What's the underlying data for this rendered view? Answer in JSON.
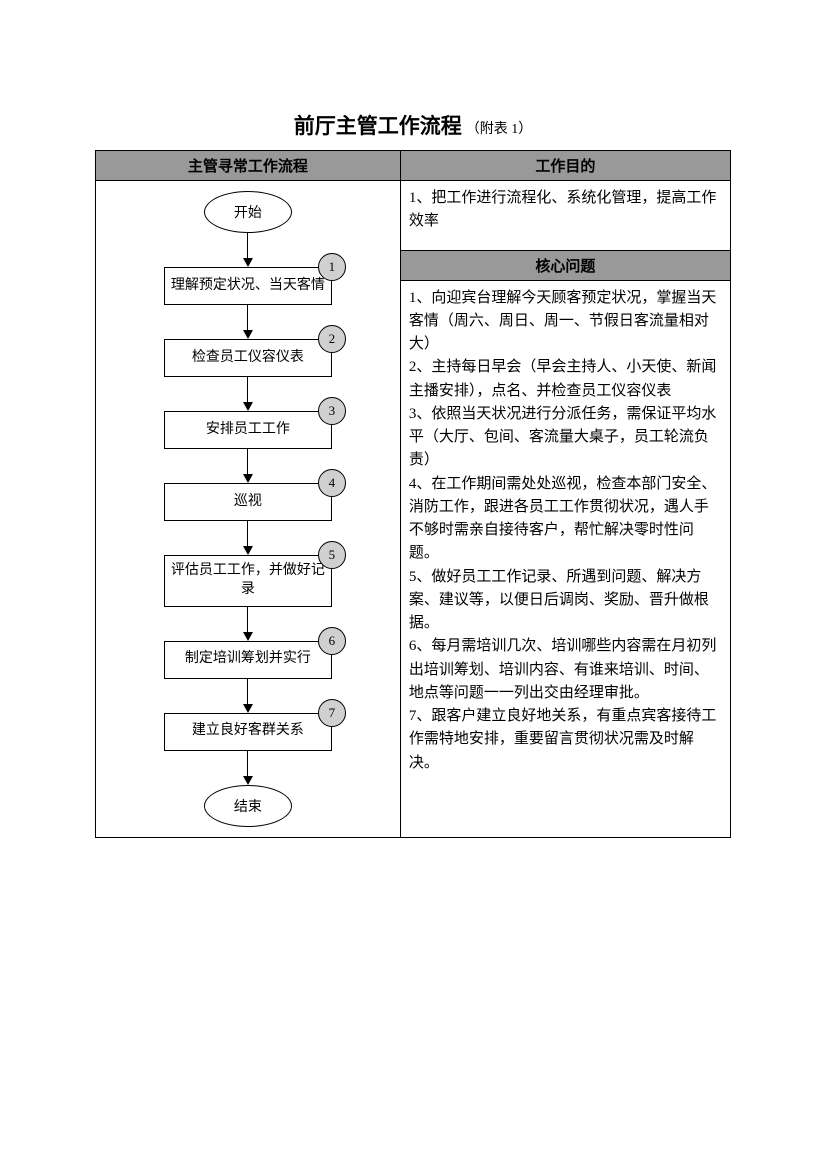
{
  "title": {
    "main": "前厅主管工作流程",
    "sub": "（附表 1）"
  },
  "headers": {
    "left": "主管寻常工作流程",
    "right": "工作目的",
    "core": "核心问题"
  },
  "flowchart": {
    "start_label": "开始",
    "end_label": "结束",
    "steps": [
      {
        "n": "1",
        "label": "理解预定状况、当天客情"
      },
      {
        "n": "2",
        "label": "检查员工仪容仪表"
      },
      {
        "n": "3",
        "label": "安排员工工作"
      },
      {
        "n": "4",
        "label": "巡视"
      },
      {
        "n": "5",
        "label": "评估员工工作，并做好记录"
      },
      {
        "n": "6",
        "label": "制定培训筹划并实行"
      },
      {
        "n": "7",
        "label": "建立良好客群关系"
      }
    ]
  },
  "objective_text": "1、把工作进行流程化、系统化管理，提高工作效率",
  "core_items": [
    "1、向迎宾台理解今天顾客预定状况，掌握当天客情（周六、周日、周一、节假日客流量相对大）",
    "2、主持每日早会（早会主持人、小天使、新闻主播安排），点名、并检查员工仪容仪表",
    "3、依照当天状况进行分派任务，需保证平均水平（大厅、包间、客流量大桌子，员工轮流负责）",
    "4、在工作期间需处处巡视，检查本部门安全、消防工作，跟进各员工工作贯彻状况，遇人手不够时需亲自接待客户，帮忙解决零时性问题。",
    "5、做好员工工作记录、所遇到问题、解决方案、建议等，以便日后调岗、奖励、晋升做根据。",
    "6、每月需培训几次、培训哪些内容需在月初列出培训筹划、培训内容、有谁来培训、时间、地点等问题一一列出交由经理审批。",
    "7、跟客户建立良好地关系，有重点宾客接待工作需特地安排，重要留言贯彻状况需及时解决。"
  ],
  "colors": {
    "header_bg": "#999999",
    "badge_bg": "#d0d0d0",
    "border": "#000000",
    "background": "#ffffff"
  }
}
